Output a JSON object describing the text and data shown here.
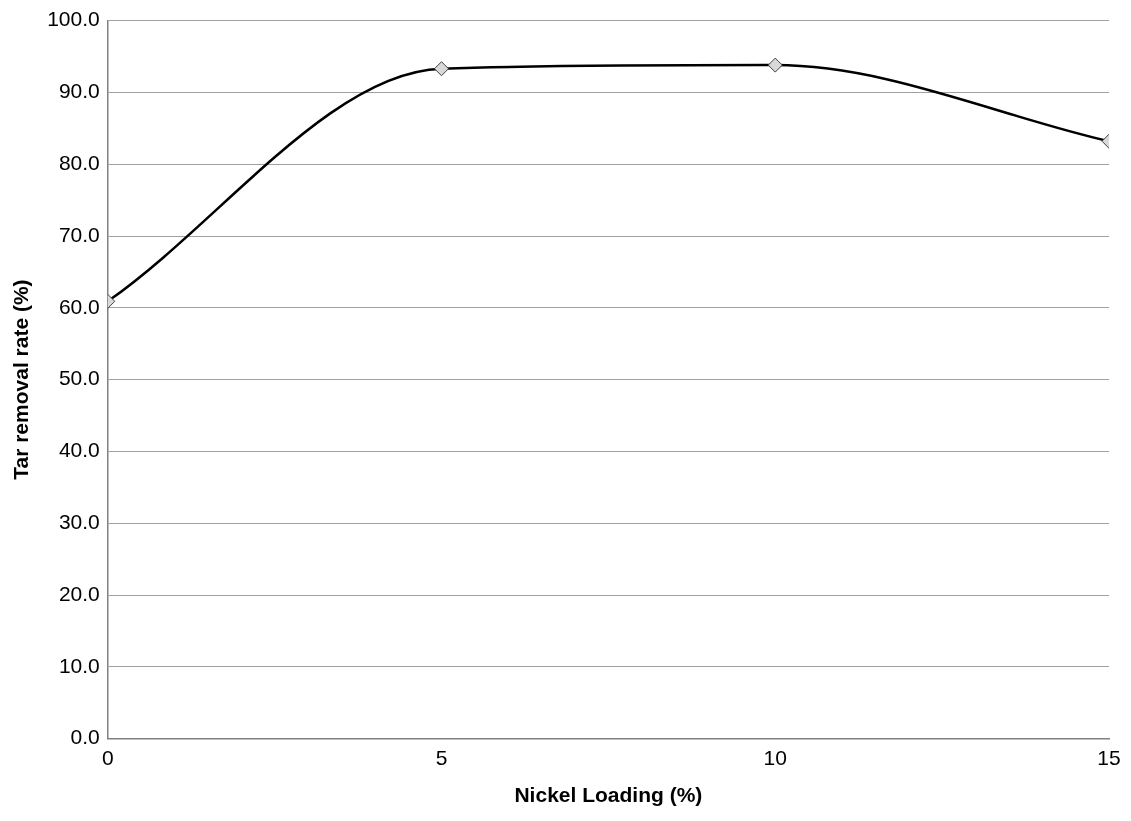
{
  "chart_data": {
    "type": "line",
    "xlabel": "Nickel Loading (%)",
    "ylabel": "Tar removal rate (%)",
    "x": [
      0,
      5,
      10,
      15
    ],
    "series": [
      {
        "color": "#000000",
        "values": [
          60.9,
          93.3,
          93.8,
          83.2
        ]
      }
    ],
    "xlim": [
      0,
      15
    ],
    "xticks": [
      0,
      5,
      10,
      15
    ],
    "ylim": [
      0,
      100
    ],
    "yticks": [
      {
        "value": 0,
        "label": "0.0"
      },
      {
        "value": 10,
        "label": "10.0"
      },
      {
        "value": 20,
        "label": "20.0"
      },
      {
        "value": 30,
        "label": "30.0"
      },
      {
        "value": 40,
        "label": "40.0"
      },
      {
        "value": 50,
        "label": "50.0"
      },
      {
        "value": 60,
        "label": "60.0"
      },
      {
        "value": 70,
        "label": "70.0"
      },
      {
        "value": 80,
        "label": "80.0"
      },
      {
        "value": 90,
        "label": "90.0"
      },
      {
        "value": 100,
        "label": "100.0"
      }
    ],
    "grid": "y",
    "marker": "diamond",
    "legend": false
  }
}
